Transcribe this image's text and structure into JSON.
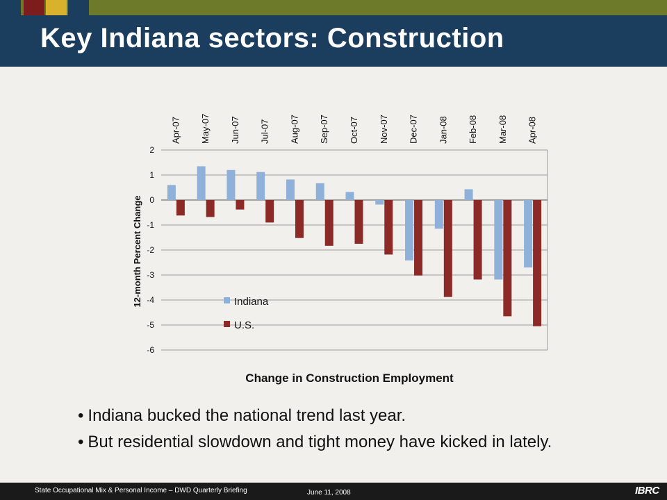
{
  "slide": {
    "title": "Key Indiana sectors: Construction",
    "bullets": [
      "Indiana bucked the national trend last year.",
      "But residential slowdown and tight money have kicked in lately."
    ],
    "bullet_glyph": "•"
  },
  "footer": {
    "left_text": "State Occupational Mix & Personal Income – DWD Quarterly Briefing",
    "date": "June 11, 2008",
    "logo_text": "IBRC"
  },
  "colors": {
    "title_bar": "#1b3e5e",
    "top_strip": "#6c7a2a",
    "indiana": "#8fb0d8",
    "us": "#8b2a26",
    "accent_squares": [
      "#1b3e5e",
      "#7d1c1c",
      "#d8b22c",
      "#1b3e5e"
    ]
  },
  "chart_data": {
    "type": "bar",
    "title": "Change in Construction Employment",
    "xlabel": "",
    "ylabel": "12-month Percent Change",
    "categories": [
      "Apr-07",
      "May-07",
      "Jun-07",
      "Jul-07",
      "Aug-07",
      "Sep-07",
      "Oct-07",
      "Nov-07",
      "Dec-07",
      "Jan-08",
      "Feb-08",
      "Mar-08",
      "Apr-08"
    ],
    "series": [
      {
        "name": "Indiana",
        "values": [
          0.6,
          1.35,
          1.2,
          1.12,
          0.82,
          0.67,
          0.32,
          -0.18,
          -2.42,
          -1.15,
          0.43,
          -3.18,
          -2.7
        ]
      },
      {
        "name": "U.S.",
        "values": [
          -0.62,
          -0.68,
          -0.38,
          -0.9,
          -1.52,
          -1.83,
          -1.75,
          -2.18,
          -3.02,
          -3.88,
          -3.18,
          -4.65,
          -5.05
        ]
      }
    ],
    "ylim": [
      -6,
      2
    ],
    "yticks": [
      "2",
      "1",
      "0",
      "-1",
      "-2",
      "-3",
      "-4",
      "-5",
      "-6"
    ],
    "grid": true,
    "category_labels_position": "top",
    "legend_position": "bottom-left"
  }
}
